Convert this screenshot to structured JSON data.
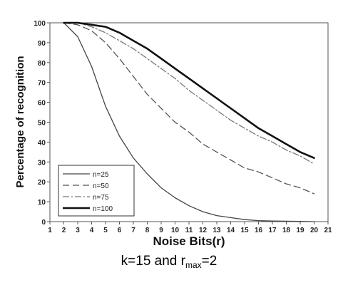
{
  "chart_data": {
    "type": "line",
    "title": "",
    "xlabel": "Noise Bits(r)",
    "ylabel": "Percentage of recognition",
    "xlim": [
      1,
      21
    ],
    "ylim": [
      0,
      100
    ],
    "xticks": [
      1,
      2,
      3,
      4,
      5,
      6,
      7,
      8,
      9,
      10,
      11,
      12,
      13,
      14,
      15,
      16,
      17,
      18,
      19,
      20,
      21
    ],
    "yticks": [
      0,
      10,
      20,
      30,
      40,
      50,
      60,
      70,
      80,
      90,
      100
    ],
    "grid": false,
    "legend_position": "bottom-left",
    "x": [
      2,
      3,
      4,
      5,
      6,
      7,
      8,
      9,
      10,
      11,
      12,
      13,
      14,
      15,
      16,
      17,
      18,
      19,
      20
    ],
    "series": [
      {
        "name": "n=25",
        "style": "solid-thin",
        "color": "#444444",
        "values": [
          100,
          93,
          78,
          58,
          43,
          32,
          24,
          17,
          12,
          8,
          5,
          3,
          2,
          1,
          0.5,
          0.3,
          0.2,
          0.1,
          0
        ]
      },
      {
        "name": "n=50",
        "style": "dashed",
        "color": "#555555",
        "values": [
          100,
          99,
          96,
          90,
          82,
          73,
          64,
          57,
          50,
          45,
          39,
          35,
          31,
          27,
          25,
          22,
          19,
          17,
          14
        ]
      },
      {
        "name": "n=75",
        "style": "dashdot",
        "color": "#777777",
        "values": [
          100,
          100,
          98,
          95,
          91,
          87,
          82,
          77,
          72,
          66,
          61,
          56,
          51,
          47,
          43,
          40,
          36,
          33,
          29
        ]
      },
      {
        "name": "n=100",
        "style": "solid-thick",
        "color": "#111111",
        "values": [
          100,
          100,
          99,
          98,
          95,
          91,
          87,
          82,
          77,
          72,
          67,
          62,
          57,
          52,
          47,
          43,
          39,
          35,
          32
        ]
      }
    ]
  },
  "caption": {
    "prefix": "k=15 and r",
    "subscript": "max",
    "suffix": "=2"
  }
}
